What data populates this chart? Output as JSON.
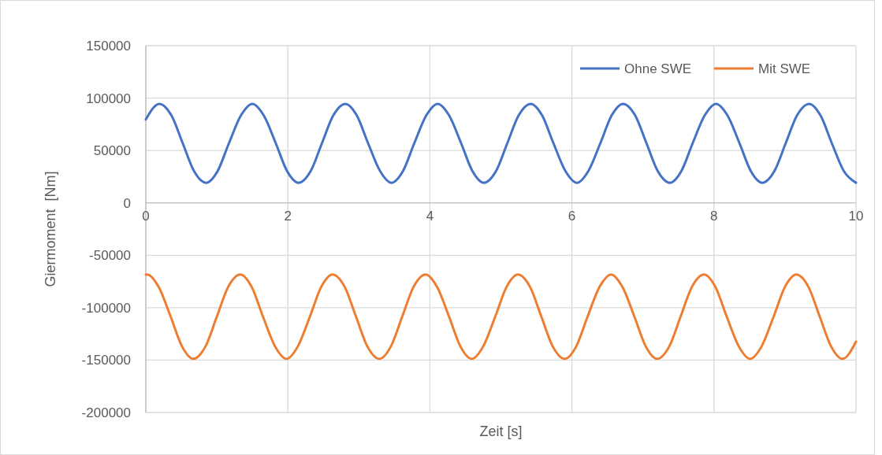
{
  "chart_data": {
    "type": "line",
    "xlabel": "Zeit [s]",
    "ylabel": "Giermoment  [Nm]",
    "xlim": [
      0,
      10
    ],
    "xticks": [
      0,
      2,
      4,
      6,
      8,
      10
    ],
    "ylim": [
      -200000,
      150000
    ],
    "yticks": [
      -200000,
      -150000,
      -100000,
      -50000,
      0,
      50000,
      100000,
      150000
    ],
    "grid": true,
    "legend": "top right",
    "line_style": "solid",
    "marker": "none",
    "series": [
      {
        "name": "Ohne SWE",
        "color": "#4472c4",
        "x": [
          0,
          0.19,
          0.36,
          0.52,
          0.68,
          0.85,
          1.01,
          1.17,
          1.34,
          1.5,
          1.66,
          1.83,
          1.99,
          2.15,
          2.32,
          2.48,
          2.64,
          2.81,
          2.97,
          3.13,
          3.3,
          3.46,
          3.62,
          3.78,
          3.95,
          4.11,
          4.27,
          4.44,
          4.6,
          4.76,
          4.93,
          5.09,
          5.25,
          5.42,
          5.58,
          5.74,
          5.91,
          6.07,
          6.23,
          6.4,
          6.56,
          6.72,
          6.89,
          7.05,
          7.21,
          7.38,
          7.54,
          7.7,
          7.87,
          8.03,
          8.19,
          8.36,
          8.52,
          8.68,
          8.85,
          9.01,
          9.17,
          9.34,
          9.5,
          9.66,
          9.83,
          10
        ],
        "values": [
          79600,
          94500,
          83500,
          56900,
          30200,
          19200,
          30200,
          56900,
          83500,
          94500,
          83500,
          56900,
          30200,
          19200,
          30200,
          56900,
          83500,
          94500,
          83500,
          56900,
          30200,
          19200,
          30200,
          56900,
          83500,
          94500,
          83500,
          56900,
          30200,
          19200,
          30200,
          56900,
          83500,
          94500,
          83500,
          56900,
          30200,
          19200,
          30200,
          56900,
          83500,
          94500,
          83500,
          56900,
          30200,
          19200,
          30200,
          56900,
          83500,
          94500,
          83500,
          56900,
          30200,
          19200,
          30200,
          56900,
          83500,
          94500,
          83500,
          56900,
          30200,
          19200
        ]
      },
      {
        "name": "Mit SWE",
        "color": "#ed7d31",
        "x": [
          0,
          0.02,
          0.18,
          0.35,
          0.51,
          0.67,
          0.84,
          1.0,
          1.16,
          1.33,
          1.49,
          1.65,
          1.82,
          1.98,
          2.14,
          2.31,
          2.47,
          2.63,
          2.8,
          2.96,
          3.12,
          3.29,
          3.45,
          3.61,
          3.77,
          3.94,
          4.1,
          4.27,
          4.43,
          4.59,
          4.75,
          4.92,
          5.08,
          5.24,
          5.41,
          5.57,
          5.73,
          5.9,
          6.06,
          6.22,
          6.39,
          6.55,
          6.71,
          6.88,
          7.04,
          7.2,
          7.37,
          7.53,
          7.69,
          7.86,
          8.02,
          8.18,
          8.35,
          8.51,
          8.67,
          8.84,
          9.0,
          9.16,
          9.33,
          9.49,
          9.65,
          9.81,
          10
        ],
        "values": [
          -68500,
          -68300,
          -80100,
          -108600,
          -137000,
          -148800,
          -137000,
          -108600,
          -80100,
          -68300,
          -80100,
          -108600,
          -137000,
          -148800,
          -137000,
          -108600,
          -80100,
          -68300,
          -80100,
          -108600,
          -137000,
          -148800,
          -137000,
          -108600,
          -80100,
          -68300,
          -80100,
          -108600,
          -137000,
          -148800,
          -137000,
          -108600,
          -80100,
          -68300,
          -80100,
          -108600,
          -137000,
          -148800,
          -137000,
          -108600,
          -80100,
          -68300,
          -80100,
          -108600,
          -137000,
          -148800,
          -137000,
          -108600,
          -80100,
          -68300,
          -80100,
          -108600,
          -137000,
          -148800,
          -137000,
          -108600,
          -80100,
          -68300,
          -80100,
          -108600,
          -137000,
          -148800,
          -132400
        ]
      }
    ]
  }
}
